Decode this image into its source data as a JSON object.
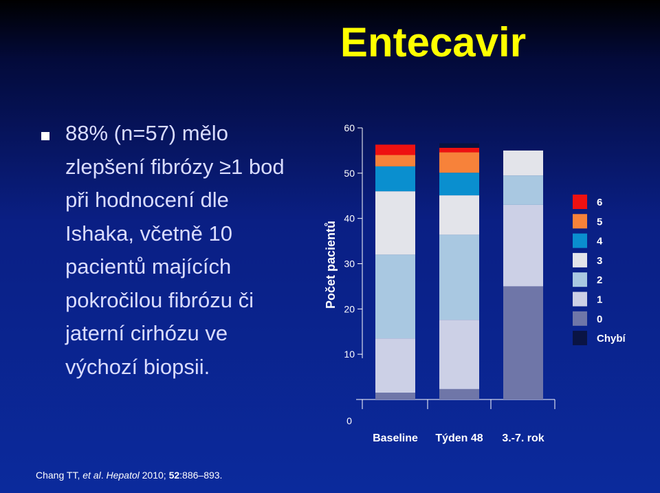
{
  "slide": {
    "title": "Entecavir",
    "bullet_lines": [
      "88% (n=57)  mělo",
      "zlepšení fibrózy ≥1 bod",
      "při hodnocení dle",
      "Ishaka, včetně 10",
      "pacientů majících",
      "pokročilou fibrózu či",
      "jaterní cirhózu ve",
      "výchozí biopsii."
    ],
    "citation": {
      "authors": "Chang TT, ",
      "etal": "et al",
      "dot": ". ",
      "journal": "Hepatol",
      "year": " 2010; ",
      "volume": "52",
      "pages": ":886–893."
    }
  },
  "chart_data": {
    "type": "bar",
    "stacked": true,
    "title": "",
    "xlabel": "",
    "ylabel": "Počet pacientů",
    "ylim": [
      0,
      60
    ],
    "yticks": [
      0,
      10,
      20,
      30,
      40,
      50,
      60
    ],
    "grid": false,
    "legend_position": "right",
    "categories": [
      "Baseline",
      "Týden 48",
      "3.-7. rok"
    ],
    "series": [
      {
        "name": "0",
        "color": "#6f76a8",
        "values": [
          1.5,
          2.3,
          25.0
        ]
      },
      {
        "name": "1",
        "color": "#ccd0e6",
        "values": [
          12.0,
          15.3,
          18.0
        ]
      },
      {
        "name": "2",
        "color": "#a9c8e1",
        "values": [
          18.5,
          18.8,
          6.5
        ]
      },
      {
        "name": "3",
        "color": "#e3e4ea",
        "values": [
          14.0,
          8.7,
          5.5
        ]
      },
      {
        "name": "4",
        "color": "#0a8fcf",
        "values": [
          5.5,
          5.0,
          0.0
        ]
      },
      {
        "name": "5",
        "color": "#f7823a",
        "values": [
          2.5,
          4.5,
          0.0
        ]
      },
      {
        "name": "6",
        "color": "#ee1111",
        "values": [
          2.3,
          1.0,
          0.0
        ]
      },
      {
        "name": "Chybí",
        "color": "#06133f",
        "values": [
          0.0,
          1.0,
          0.0
        ]
      }
    ],
    "legend_extra": {
      "name": "Chybí",
      "color": "#0a1444",
      "values": [
        0,
        0,
        1.0
      ]
    }
  }
}
